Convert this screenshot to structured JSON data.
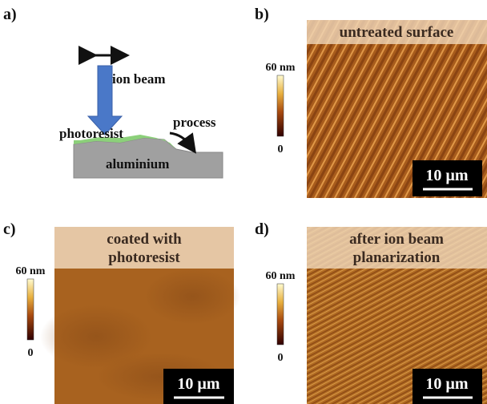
{
  "panels": [
    {
      "label": "a)",
      "diagram": {
        "beam": "ion beam",
        "layer": "photoresist",
        "arrow": "process",
        "substrate": "aluminium"
      }
    },
    {
      "label": "b)",
      "title": [
        "untreated surface"
      ],
      "colorbar": {
        "max": "60 nm",
        "min": "0"
      },
      "scalebar": "10 µm"
    },
    {
      "label": "c)",
      "title": [
        "coated with",
        "photoresist"
      ],
      "colorbar": {
        "max": "60 nm",
        "min": "0"
      },
      "scalebar": "10 µm"
    },
    {
      "label": "d)",
      "title": [
        "after ion beam",
        "planarization"
      ],
      "colorbar": {
        "max": "60 nm",
        "min": "0"
      },
      "scalebar": "10 µm"
    }
  ]
}
